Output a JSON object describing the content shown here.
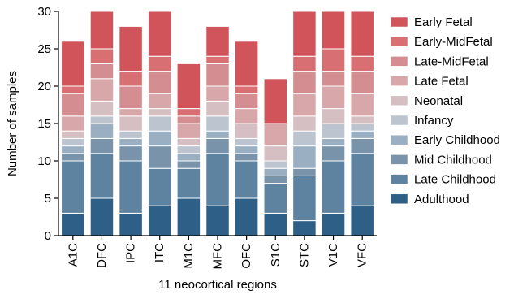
{
  "chart_data": {
    "type": "bar",
    "stacked": true,
    "xlabel": "11 neocortical regions",
    "ylabel": "Number of samples",
    "ylim": [
      0,
      30
    ],
    "yticks": [
      0,
      5,
      10,
      15,
      20,
      25,
      30
    ],
    "grid": false,
    "legend_position": "right",
    "categories": [
      "A1C",
      "DFC",
      "IPC",
      "ITC",
      "M1C",
      "MFC",
      "OFC",
      "S1C",
      "STC",
      "V1C",
      "VFC"
    ],
    "series": [
      {
        "name": "Adulthood",
        "color": "#2d5f87",
        "values": [
          3,
          5,
          3,
          4,
          5,
          4,
          5,
          3,
          2,
          3,
          4
        ]
      },
      {
        "name": "Late Childhood",
        "color": "#5e83a1",
        "values": [
          7,
          6,
          7,
          5,
          4,
          7,
          5,
          4,
          6,
          7,
          7
        ]
      },
      {
        "name": "Mid Childhood",
        "color": "#7993ab",
        "values": [
          1,
          2,
          2,
          3,
          1,
          2,
          1,
          1,
          1,
          2,
          2
        ]
      },
      {
        "name": "Early Childhood",
        "color": "#9aafc1",
        "values": [
          1,
          2,
          1,
          2,
          1,
          1,
          1,
          1,
          3,
          1,
          1
        ]
      },
      {
        "name": "Infancy",
        "color": "#bcc5cf",
        "values": [
          1,
          1,
          1,
          2,
          1,
          2,
          1,
          1,
          2,
          2,
          1
        ]
      },
      {
        "name": "Neonatal",
        "color": "#d6bfc2",
        "values": [
          1,
          2,
          2,
          1,
          1,
          2,
          2,
          2,
          2,
          2,
          1
        ]
      },
      {
        "name": "Late Fetal",
        "color": "#d8a7a9",
        "values": [
          2,
          3,
          1,
          2,
          2,
          2,
          2,
          3,
          3,
          3,
          3
        ]
      },
      {
        "name": "Late-MidFetal",
        "color": "#d48e91",
        "values": [
          3,
          2,
          3,
          3,
          1,
          3,
          2,
          0,
          3,
          2,
          3
        ]
      },
      {
        "name": "Early-MidFetal",
        "color": "#d87073",
        "values": [
          1,
          2,
          2,
          2,
          1,
          1,
          1,
          0,
          2,
          3,
          2
        ]
      },
      {
        "name": "Early Fetal",
        "color": "#d05459",
        "values": [
          6,
          5,
          6,
          6,
          6,
          4,
          6,
          6,
          6,
          5,
          6
        ]
      }
    ]
  }
}
